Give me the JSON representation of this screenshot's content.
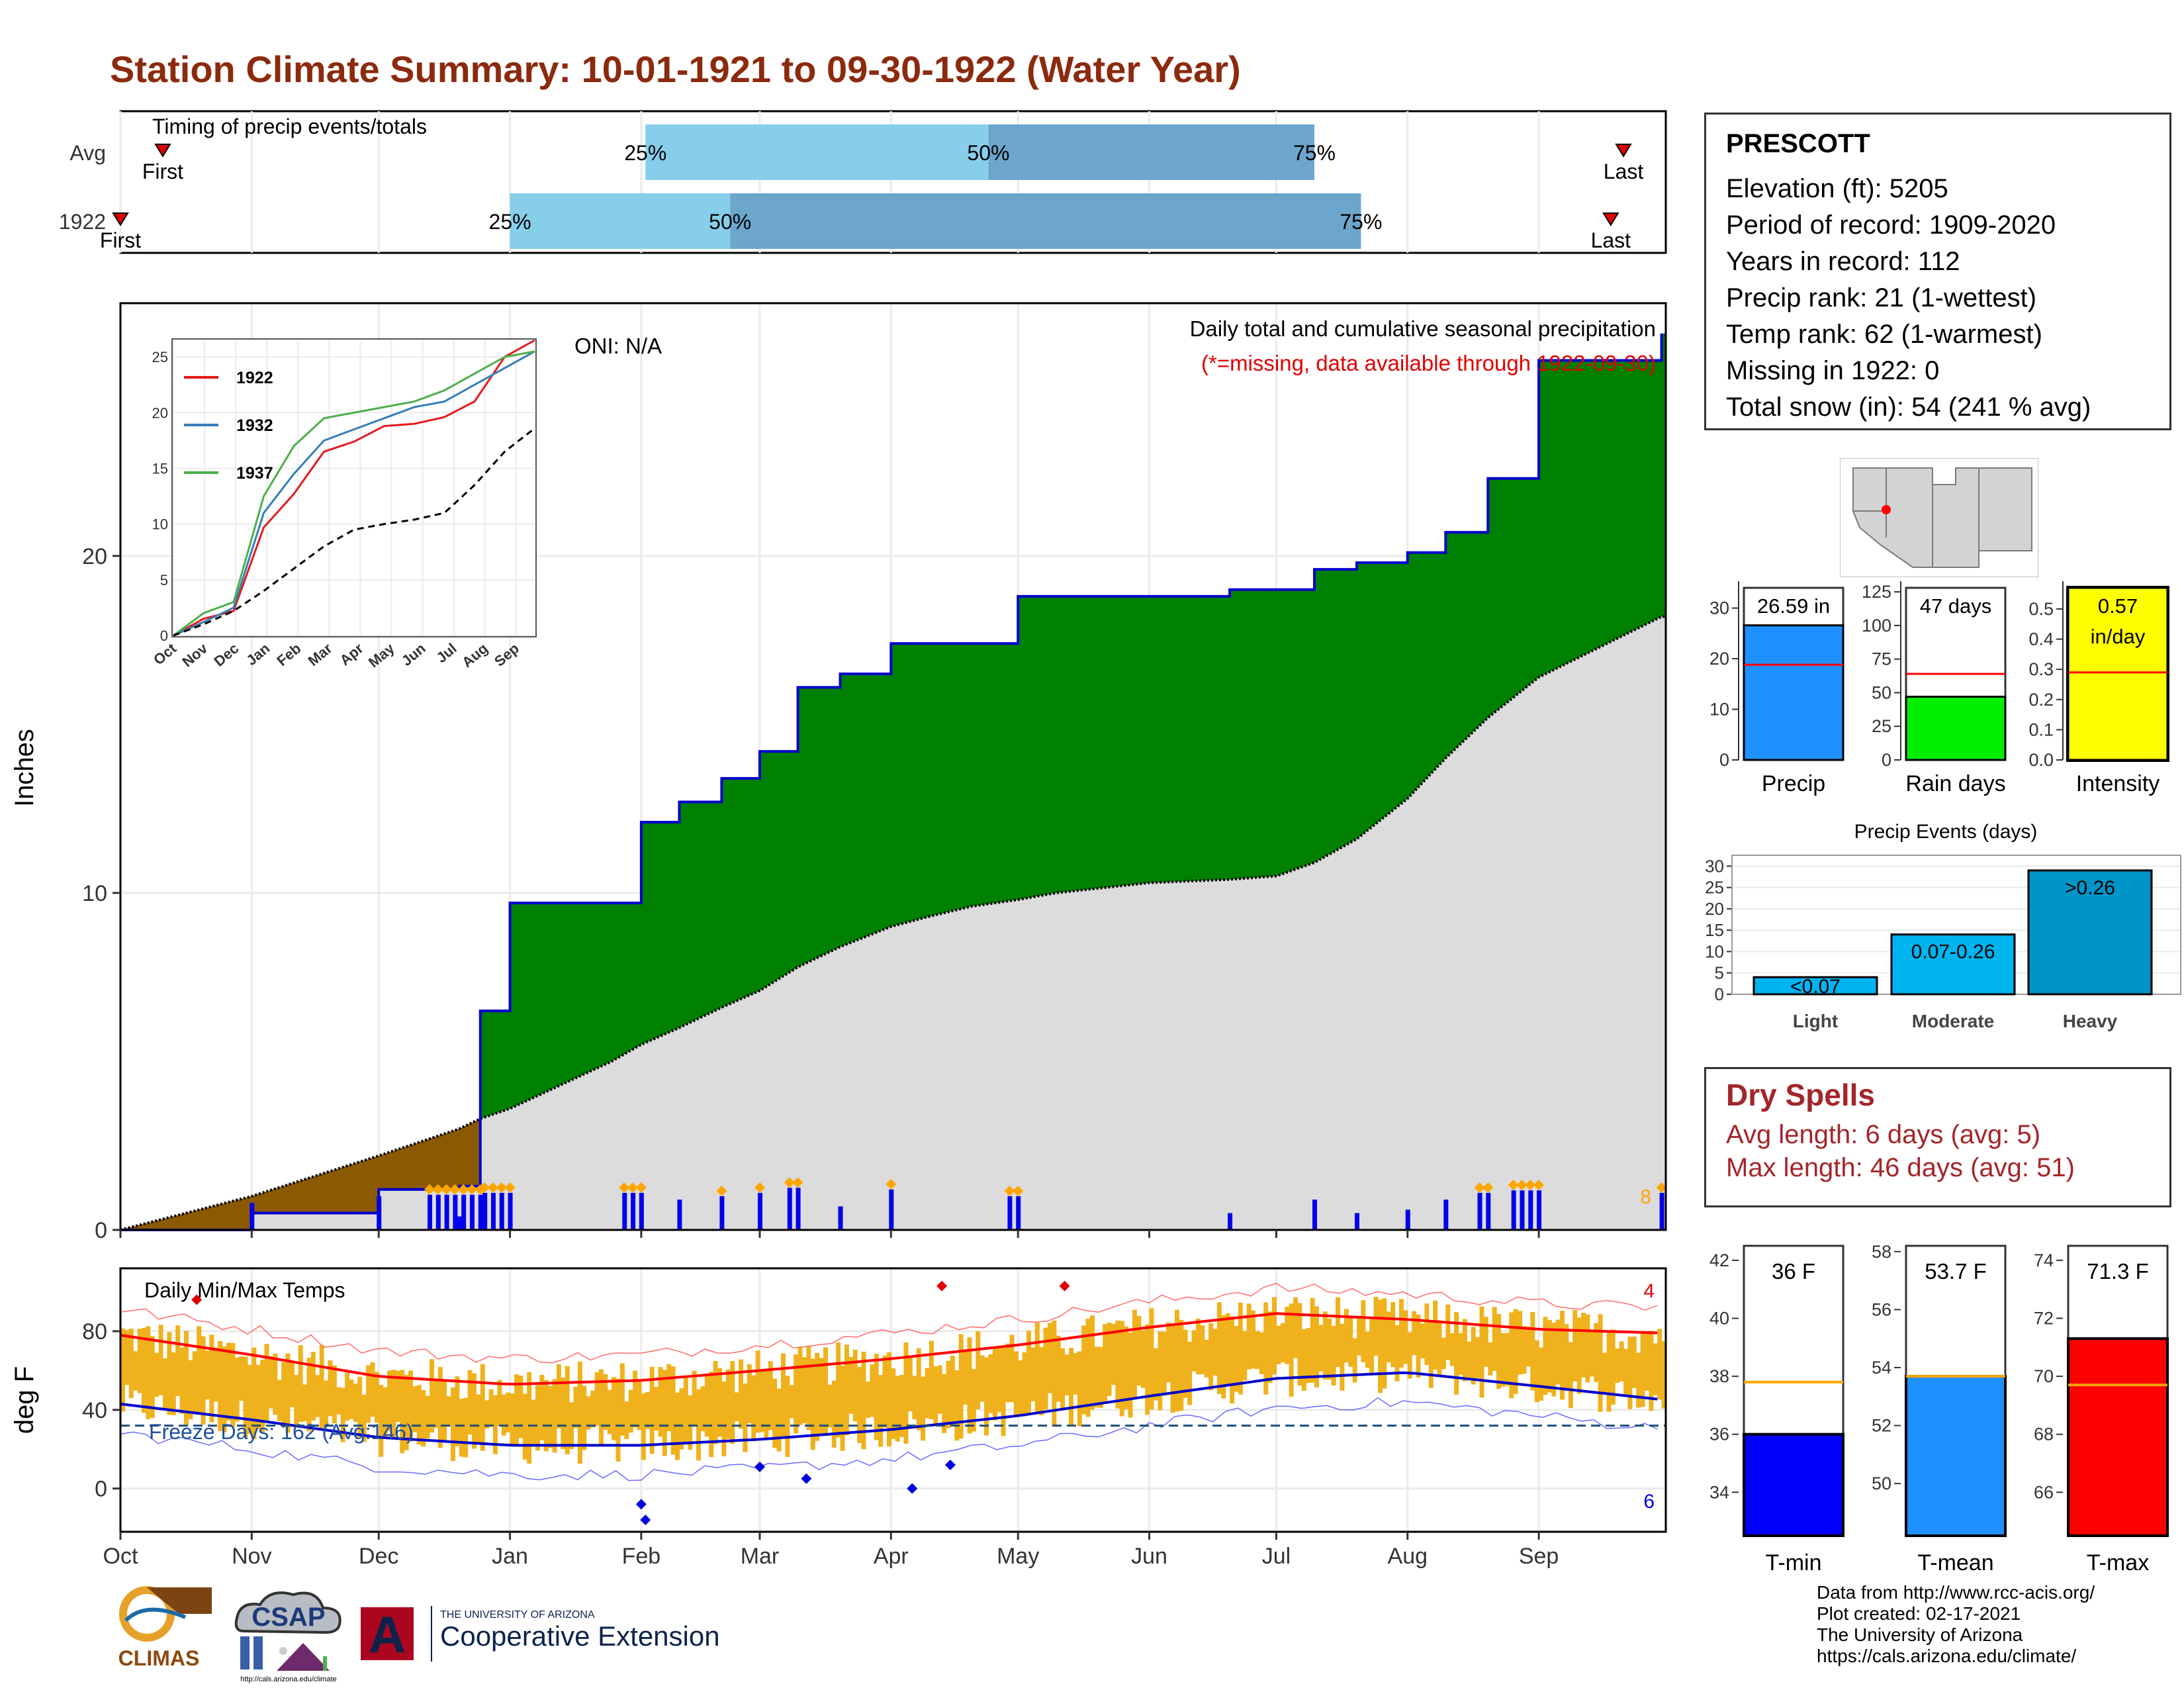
{
  "title": "Station Climate Summary: 10-01-1921 to 09-30-1922 (Water Year)",
  "timing_panel": {
    "label": "Timing of precip events/totals",
    "rows": [
      {
        "name": "Avg",
        "q25_label": "25%",
        "q50_label": "50%",
        "q75_label": "75%",
        "q25": 12.4,
        "q50": 20.5,
        "q75": 28.2,
        "first": 1.0,
        "last": 35.5,
        "first_label": "First",
        "last_label": "Last"
      },
      {
        "name": "1922",
        "q25_label": "25%",
        "q50_label": "50%",
        "q75_label": "75%",
        "q25": 9.2,
        "q50": 14.4,
        "q75": 29.3,
        "first": 0.0,
        "last": 35.2,
        "first_label": "First",
        "last_label": "Last"
      }
    ]
  },
  "precip_panel": {
    "title": "Daily total and cumulative seasonal precipitation",
    "subtitle": "(*=missing, data available through 1922-09-30)",
    "oni": "ONI: N/A",
    "ylabel": "Inches",
    "corner_count": "8",
    "yticks": [
      "0",
      "10",
      "20"
    ]
  },
  "inset": {
    "series": [
      {
        "name": "1922",
        "color": "#e41a1c"
      },
      {
        "name": "1932",
        "color": "#377eb8"
      },
      {
        "name": "1937",
        "color": "#4daf4a"
      }
    ],
    "yticks": [
      "0",
      "5",
      "10",
      "15",
      "20",
      "25"
    ],
    "xticks": [
      "Oct",
      "Nov",
      "Dec",
      "Jan",
      "Feb",
      "Mar",
      "Apr",
      "May",
      "Jun",
      "Jul",
      "Aug",
      "Sep"
    ]
  },
  "temp_panel": {
    "label": "Daily Min/Max Temps",
    "ylabel": "deg F",
    "yticks": [
      "0",
      "40",
      "80"
    ],
    "freeze_text": "Freeze Days: 162 (Avg:146)",
    "high_count": "4",
    "low_count": "6"
  },
  "month_labels": [
    "Oct",
    "Nov",
    "Dec",
    "Jan",
    "Feb",
    "Mar",
    "Apr",
    "May",
    "Jun",
    "Jul",
    "Aug",
    "Sep"
  ],
  "station": {
    "name": "PRESCOTT",
    "lines": [
      "Elevation (ft): 5205",
      "Period of record: 1909-2020",
      "Years in record: 112",
      "Precip rank: 21 (1-wettest)",
      "Temp rank: 62 (1-warmest)",
      "Missing in 1922: 0",
      "Total snow (in): 54 (241 % avg)"
    ]
  },
  "summary_bars": [
    {
      "label": "Precip",
      "value_label": "26.59 in",
      "value": 26.59,
      "avg": 18.8,
      "ymax": 34,
      "color": "#1e90ff",
      "ticks": [
        "0",
        "10",
        "20",
        "30"
      ]
    },
    {
      "label": "Rain days",
      "value_label": "47 days",
      "value": 47,
      "avg": 64,
      "ymax": 128,
      "color": "#00ee00",
      "ticks": [
        "0",
        "25",
        "50",
        "75",
        "100",
        "125"
      ]
    },
    {
      "label": "Intensity",
      "value_label": "0.57\nin/day",
      "value": 0.57,
      "avg": 0.29,
      "ymax": 0.57,
      "color": "#ffff00",
      "ticks": [
        "0.0",
        "0.1",
        "0.2",
        "0.3",
        "0.4",
        "0.5"
      ]
    }
  ],
  "precip_events": {
    "title": "Precip Events (days)",
    "ticks": [
      "0",
      "5",
      "10",
      "15",
      "20",
      "25",
      "30"
    ],
    "bars": [
      {
        "category": "Light",
        "range_label": "<0.07",
        "value": 4
      },
      {
        "category": "Moderate",
        "range_label": "0.07-0.26",
        "value": 14
      },
      {
        "category": "Heavy",
        "range_label": ">0.26",
        "value": 29
      }
    ]
  },
  "dry_spells": {
    "title": "Dry Spells",
    "lines": [
      "Avg length: 6 days (avg: 5)",
      "Max length: 46 days (avg: 51)"
    ]
  },
  "temp_bars": [
    {
      "label": "T-min",
      "value_label": "36 F",
      "value": 36.0,
      "avg": 37.8,
      "ymin": 32.5,
      "ymax": 42.5,
      "color": "#0000ff",
      "ticks": [
        "34",
        "36",
        "38",
        "40",
        "42"
      ]
    },
    {
      "label": "T-mean",
      "value_label": "53.7 F",
      "value": 53.7,
      "avg": 53.7,
      "ymin": 48.2,
      "ymax": 58.2,
      "color": "#1e90ff",
      "ticks": [
        "50",
        "52",
        "54",
        "56",
        "58"
      ]
    },
    {
      "label": "T-max",
      "value_label": "71.3 F",
      "value": 71.3,
      "avg": 69.7,
      "ymin": 64.5,
      "ymax": 74.5,
      "color": "#ff0000",
      "ticks": [
        "66",
        "68",
        "70",
        "72",
        "74"
      ]
    }
  ],
  "footer": {
    "lines": [
      "Data from http://www.rcc-acis.org/",
      "Plot created: 02-17-2021",
      "The University of Arizona",
      "https://cals.arizona.edu/climate/"
    ],
    "logos": {
      "climas": "CLIMAS",
      "csap": "CSAP",
      "csap_url": "http://cals.arizona.edu/climate",
      "ua_small": "THE UNIVERSITY OF ARIZONA",
      "ua_big": "Cooperative Extension"
    }
  },
  "colors": {
    "title": "#8c2a0e",
    "cum_fill": "#008000",
    "avg_fill": "#dcdcdc",
    "deficit_fill": "#8b5a00",
    "line": "#0000cd",
    "temp_bar": "#efb21d",
    "dry_text": "#a3262a"
  },
  "chart_data": [
    {
      "type": "area",
      "title": "Daily total and cumulative seasonal precipitation",
      "ylabel": "Inches",
      "x": [
        "10-01",
        "11-01",
        "12-01",
        "12-20",
        "12-25",
        "01-01",
        "01-25",
        "02-01",
        "02-10",
        "02-20",
        "03-01",
        "03-10",
        "03-20",
        "04-01",
        "04-10",
        "04-20",
        "05-01",
        "05-10",
        "06-01",
        "06-20",
        "07-01",
        "07-10",
        "07-20",
        "08-01",
        "08-10",
        "08-20",
        "09-01",
        "09-30"
      ],
      "series": [
        {
          "name": "1922",
          "values": [
            0.0,
            0.5,
            1.2,
            1.3,
            6.5,
            9.7,
            9.7,
            12.1,
            12.7,
            13.4,
            14.2,
            16.1,
            16.5,
            17.4,
            17.4,
            17.4,
            18.8,
            18.8,
            18.8,
            19.0,
            19.0,
            19.6,
            19.8,
            20.1,
            20.7,
            22.3,
            25.8,
            26.6
          ]
        }
      ],
      "avg_cumulative": [
        0.0,
        1.0,
        2.2,
        3.0,
        3.3,
        3.6,
        5.0,
        5.5,
        6.0,
        6.6,
        7.1,
        7.8,
        8.4,
        9.0,
        9.3,
        9.6,
        9.8,
        10.0,
        10.3,
        10.4,
        10.5,
        10.9,
        11.6,
        12.8,
        14.0,
        15.2,
        16.4,
        18.2
      ],
      "ylim": [
        0,
        27.5
      ]
    },
    {
      "type": "line",
      "title": "",
      "xlabel": "",
      "ylabel": "",
      "x": [
        "Oct",
        "Nov",
        "Dec",
        "Jan",
        "Feb",
        "Mar",
        "Apr",
        "May",
        "Jun",
        "Jul",
        "Aug",
        "Sep",
        "Sep-end"
      ],
      "series": [
        {
          "name": "1922",
          "values": [
            0,
            1.5,
            2.2,
            9.7,
            12.7,
            16.5,
            17.4,
            18.8,
            19.0,
            19.6,
            21.0,
            25.0,
            26.6
          ]
        },
        {
          "name": "1932",
          "values": [
            0,
            1.2,
            2.5,
            11.0,
            14.5,
            17.5,
            18.5,
            19.5,
            20.5,
            21.0,
            22.5,
            24.0,
            25.5
          ]
        },
        {
          "name": "1937",
          "values": [
            0,
            2.0,
            3.0,
            12.5,
            17.0,
            19.5,
            20.0,
            20.5,
            21.0,
            22.0,
            23.5,
            25.0,
            25.5
          ]
        }
      ],
      "avg": [
        0,
        1.0,
        2.2,
        4.0,
        6.0,
        8.0,
        9.5,
        10.0,
        10.4,
        11.0,
        13.5,
        16.5,
        18.6
      ],
      "ylim": [
        0,
        26.5
      ]
    },
    {
      "type": "bar",
      "title": "Daily Min/Max Temps",
      "ylabel": "deg F",
      "x": [
        "Oct",
        "Nov",
        "Dec",
        "Jan",
        "Feb",
        "Mar",
        "Apr",
        "May",
        "Jun",
        "Jul",
        "Aug",
        "Sep",
        "Sep-end"
      ],
      "series": [
        {
          "name": "avg_max",
          "values": [
            78,
            68,
            57,
            53,
            55,
            60,
            66,
            73,
            82,
            89,
            86,
            81,
            79
          ]
        },
        {
          "name": "avg_min",
          "values": [
            43,
            35,
            26,
            22,
            22,
            25,
            30,
            37,
            47,
            56,
            59,
            52,
            45
          ]
        }
      ],
      "freeze_line": 32,
      "ylim": [
        -22,
        112
      ]
    }
  ]
}
